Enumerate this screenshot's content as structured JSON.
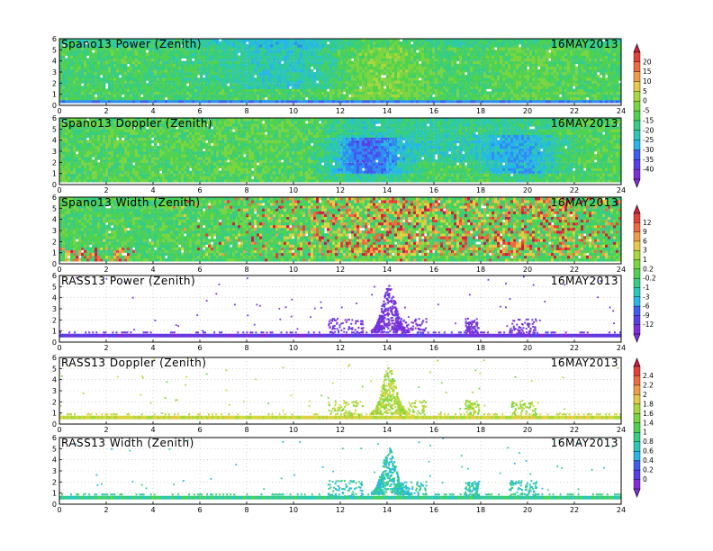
{
  "date": "16MAY2013",
  "x_ticks": [
    "0",
    "2",
    "4",
    "6",
    "8",
    "10",
    "12",
    "14",
    "16",
    "18",
    "20",
    "22",
    "24"
  ],
  "y_ticks": [
    "0",
    "1",
    "2",
    "3",
    "4",
    "5",
    "6"
  ],
  "colorbars": [
    {
      "labels": [
        "20",
        "15",
        "10",
        "5",
        "0",
        "-5",
        "-15",
        "-20",
        "-25",
        "-30",
        "-35",
        "-40"
      ]
    },
    {
      "labels": [
        "12",
        "9",
        "6",
        "3",
        "1",
        "0.2",
        "-0.2",
        "-1",
        "-3",
        "-6",
        "-9",
        "-12"
      ]
    },
    {
      "labels": [
        "2.4",
        "2.2",
        "2",
        "1.8",
        "1.6",
        "1.4",
        "1",
        "0.8",
        "0.6",
        "0.4",
        "0.2",
        "0"
      ]
    }
  ],
  "colors": {
    "scale": [
      "#7f2fd8",
      "#5a3ee6",
      "#3f5ef0",
      "#2f8df2",
      "#27b6e8",
      "#2bc8b8",
      "#37cd82",
      "#4fd252",
      "#79d640",
      "#a9d83c",
      "#d7d73f",
      "#e7c94a",
      "#ef9c48",
      "#ed6b3f",
      "#e0413a",
      "#c8223f"
    ]
  },
  "chart_data": [
    {
      "type": "heatmap",
      "title": "Spano13 Power (Zenith)",
      "xlim": [
        0,
        24
      ],
      "ylim": [
        0,
        6
      ],
      "colorbar": 0,
      "pattern": "power"
    },
    {
      "type": "heatmap",
      "title": "Spano13 Doppler (Zenith)",
      "xlim": [
        0,
        24
      ],
      "ylim": [
        0,
        6
      ],
      "colorbar": 0,
      "pattern": "doppler"
    },
    {
      "type": "heatmap",
      "title": "Spano13 Width (Zenith)",
      "xlim": [
        0,
        24
      ],
      "ylim": [
        0,
        6
      ],
      "colorbar": 1,
      "pattern": "width"
    },
    {
      "type": "heatmap",
      "title": "RASS13 Power (Zenith)",
      "xlim": [
        0,
        24
      ],
      "ylim": [
        0,
        6
      ],
      "colorbar": 1,
      "pattern": "rass_power"
    },
    {
      "type": "heatmap",
      "title": "RASS13 Doppler (Zenith)",
      "xlim": [
        0,
        24
      ],
      "ylim": [
        0,
        6
      ],
      "colorbar": 2,
      "pattern": "rass_doppler"
    },
    {
      "type": "heatmap",
      "title": "RASS13 Width (Zenith)",
      "xlim": [
        0,
        24
      ],
      "ylim": [
        0,
        6
      ],
      "colorbar": 2,
      "pattern": "rass_width"
    }
  ]
}
